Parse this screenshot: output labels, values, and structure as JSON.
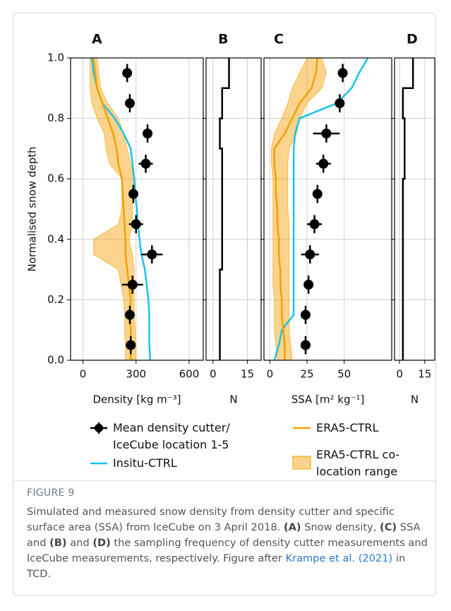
{
  "chart_data": [
    {
      "type": "profile",
      "panel_label": "A",
      "xlabel": "Density [kg m⁻³]",
      "ylabel": "Normalised snow depth",
      "xlim": [
        -70,
        680
      ],
      "xticks": [
        0,
        300,
        600
      ],
      "ylim": [
        0,
        1
      ],
      "yticks": [
        {
          "value": 0,
          "label": "0.0"
        },
        0.2,
        0.4,
        0.6,
        0.8,
        {
          "value": 1,
          "label": "1.0"
        }
      ],
      "ytick_labels": true,
      "grid": true,
      "depth": [
        0,
        0.05,
        0.1,
        0.15,
        0.2,
        0.25,
        0.3,
        0.35,
        0.4,
        0.45,
        0.5,
        0.55,
        0.6,
        0.65,
        0.7,
        0.75,
        0.8,
        0.85,
        0.9,
        0.95,
        1
      ],
      "series": [
        {
          "name": "Mean density cutter/ IceCube location 1-5",
          "kind": "points",
          "color": "#000000",
          "y": [
            0.05,
            0.15,
            0.25,
            0.35,
            0.45,
            0.55,
            0.65,
            0.75,
            0.85,
            0.95
          ],
          "x": [
            270,
            265,
            280,
            390,
            300,
            285,
            355,
            365,
            265,
            250
          ],
          "xerr": [
            15,
            20,
            60,
            60,
            40,
            20,
            40,
            20,
            15,
            15
          ],
          "yerr": [
            0.03,
            0.03,
            0.03,
            0.03,
            0.03,
            0.03,
            0.03,
            0.03,
            0.03,
            0.03
          ]
        },
        {
          "name": "Insitu-CTRL",
          "kind": "line",
          "color": "#17c3ee",
          "values": [
            380,
            375,
            375,
            375,
            370,
            360,
            350,
            330,
            320,
            310,
            305,
            295,
            290,
            280,
            270,
            230,
            180,
            110,
            80,
            60,
            50
          ]
        },
        {
          "name": "ERA5-CTRL",
          "kind": "line",
          "color": "#f5a000",
          "values": [
            270,
            270,
            270,
            265,
            270,
            260,
            250,
            240,
            240,
            235,
            230,
            225,
            220,
            200,
            190,
            170,
            140,
            110,
            80,
            70,
            60
          ]
        },
        {
          "name": "ERA5-CTRL co-location range",
          "kind": "band",
          "color": "#f5a000",
          "lower": [
            240,
            240,
            235,
            235,
            230,
            215,
            200,
            60,
            60,
            200,
            220,
            220,
            220,
            150,
            130,
            120,
            80,
            50,
            40,
            40,
            40
          ],
          "upper": [
            300,
            300,
            295,
            290,
            290,
            290,
            290,
            280,
            260,
            280,
            280,
            285,
            290,
            270,
            250,
            230,
            200,
            140,
            100,
            90,
            80
          ]
        }
      ]
    },
    {
      "type": "step",
      "panel_label": "B",
      "xlabel": "N",
      "xlim": [
        -3,
        21
      ],
      "xticks": [
        0,
        15
      ],
      "ylim": [
        0,
        1
      ],
      "yticks": [
        0.2,
        0.4,
        0.6,
        0.8
      ],
      "ytick_labels": false,
      "grid": true,
      "color": "#000000",
      "edges": [
        0,
        0.1,
        0.2,
        0.3,
        0.4,
        0.5,
        0.6,
        0.7,
        0.8,
        0.9,
        1
      ],
      "values": [
        3,
        3,
        3,
        4,
        4,
        4,
        4,
        3,
        4,
        7
      ]
    },
    {
      "type": "profile",
      "panel_label": "C",
      "xlabel": "SSA [m² kg⁻¹]",
      "xlim": [
        -4,
        82
      ],
      "xticks": [
        0,
        25,
        50
      ],
      "ylim": [
        0,
        1
      ],
      "yticks": [
        0.2,
        0.4,
        0.6,
        0.8
      ],
      "ytick_labels": false,
      "grid": true,
      "depth": [
        0,
        0.05,
        0.1,
        0.15,
        0.2,
        0.25,
        0.3,
        0.35,
        0.4,
        0.45,
        0.5,
        0.55,
        0.6,
        0.65,
        0.7,
        0.75,
        0.8,
        0.85,
        0.9,
        0.95,
        1
      ],
      "series": [
        {
          "kind": "points",
          "color": "#000000",
          "y": [
            0.05,
            0.15,
            0.25,
            0.35,
            0.45,
            0.55,
            0.65,
            0.75,
            0.85,
            0.95
          ],
          "x": [
            24,
            24,
            26,
            27,
            30,
            32,
            36,
            38,
            47,
            49
          ],
          "xerr": [
            2,
            2,
            2,
            6,
            5,
            3,
            5,
            9,
            3,
            3
          ],
          "yerr": [
            0.03,
            0.03,
            0.03,
            0.03,
            0.03,
            0.03,
            0.03,
            0.03,
            0.03,
            0.03
          ]
        },
        {
          "kind": "line",
          "color": "#17c3ee",
          "values": [
            3,
            6,
            8,
            16,
            16,
            16,
            16,
            16,
            16,
            16,
            16,
            16,
            16,
            16,
            16,
            17,
            20,
            45,
            55,
            60,
            66
          ]
        },
        {
          "kind": "line",
          "color": "#f5a000",
          "values": [
            10,
            10,
            9,
            8,
            8,
            7,
            7,
            6,
            6,
            5,
            5,
            4,
            4,
            3,
            3,
            10,
            15,
            20,
            28,
            31,
            32
          ]
        },
        {
          "kind": "band",
          "color": "#f5a000",
          "lower": [
            5,
            4,
            3,
            3,
            3,
            2,
            2,
            2,
            2,
            2,
            2,
            2,
            2,
            1,
            1,
            3,
            8,
            12,
            15,
            20,
            25
          ],
          "upper": [
            15,
            14,
            13,
            13,
            13,
            13,
            13,
            13,
            13,
            13,
            12,
            12,
            12,
            12,
            13,
            18,
            20,
            25,
            35,
            38,
            35
          ]
        }
      ]
    },
    {
      "type": "step",
      "panel_label": "D",
      "xlabel": "N",
      "xlim": [
        -3,
        21
      ],
      "xticks": [
        0,
        15
      ],
      "ylim": [
        0,
        1
      ],
      "yticks": [
        0.2,
        0.4,
        0.6,
        0.8
      ],
      "ytick_labels": false,
      "grid": true,
      "color": "#000000",
      "edges": [
        0,
        0.1,
        0.2,
        0.3,
        0.4,
        0.5,
        0.6,
        0.7,
        0.8,
        0.9,
        1
      ],
      "values": [
        2,
        2,
        2,
        2,
        2,
        2,
        3,
        3,
        2,
        8
      ]
    }
  ],
  "caption": {
    "label": "FIGURE 9",
    "parts": [
      "Simulated and measured snow density from density cutter and specific surface area (SSA) from IceCube on 3 April 2018. ",
      "(A)",
      " Snow density, ",
      "(C)",
      " SSA and ",
      "(B)",
      " and ",
      "(D)",
      " the sampling frequency of density cutter measurements and IceCube measurements, respectively. Figure after ",
      "Krampe et al. (2021)",
      " in TCD."
    ]
  }
}
